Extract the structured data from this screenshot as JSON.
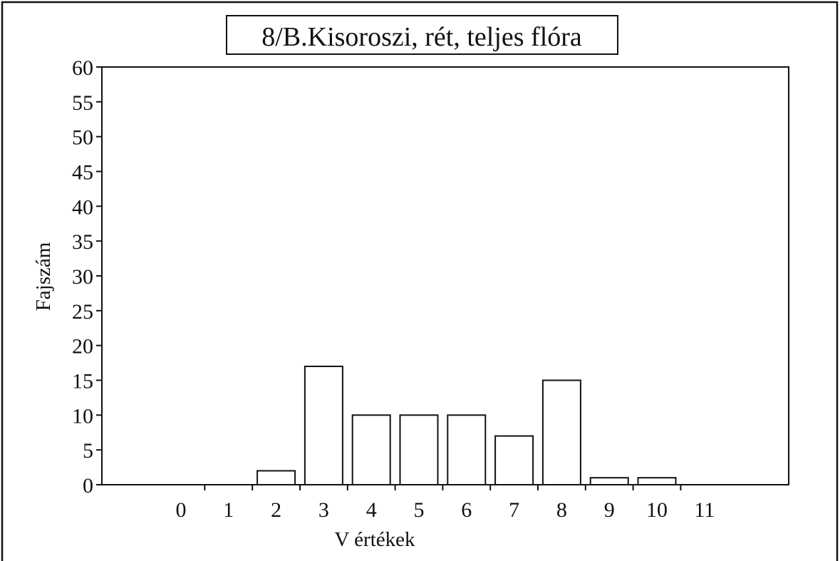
{
  "chart_data": {
    "type": "bar",
    "title": "8/B.Kisoroszi, rét, teljes flóra",
    "xlabel": "V értékek",
    "ylabel": "Fajszám",
    "categories": [
      "0",
      "1",
      "2",
      "3",
      "4",
      "5",
      "6",
      "7",
      "8",
      "9",
      "10",
      "11"
    ],
    "values": [
      0,
      0,
      2,
      17,
      10,
      10,
      10,
      7,
      15,
      1,
      1,
      0
    ],
    "ylim": [
      0,
      60
    ],
    "yticks": [
      0,
      5,
      10,
      15,
      20,
      25,
      30,
      35,
      40,
      45,
      50,
      55,
      60
    ],
    "grid": false,
    "legend": "none"
  }
}
